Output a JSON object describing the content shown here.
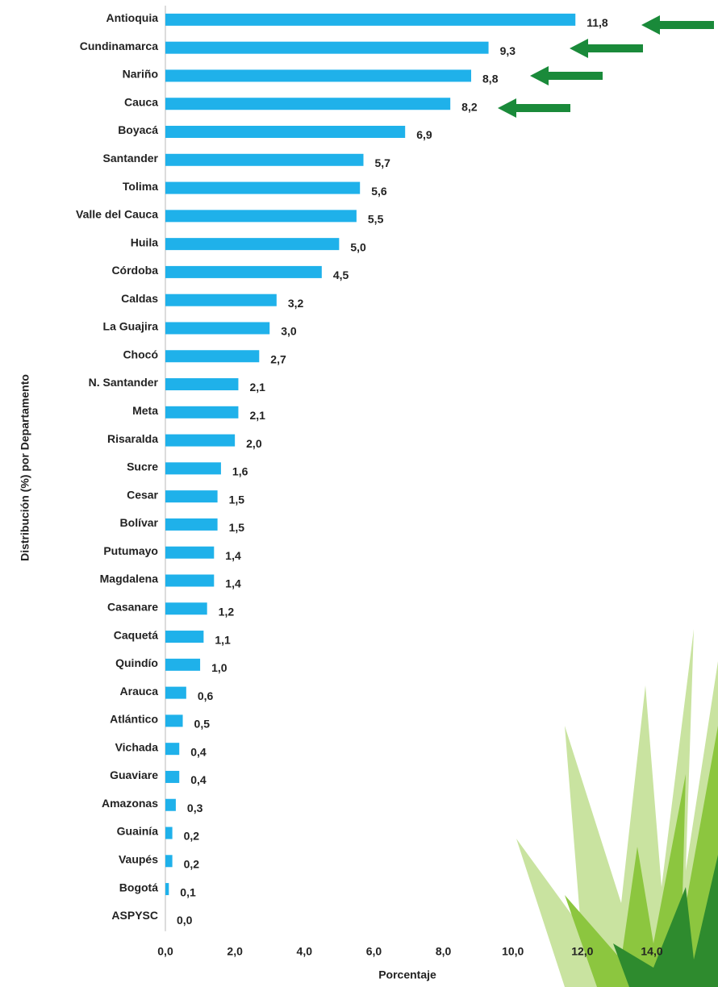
{
  "chart_data": {
    "type": "bar",
    "orientation": "horizontal",
    "color": "#1fb1ea",
    "categories": [
      "Antioquia",
      "Cundinamarca",
      "Nariño",
      "Cauca",
      "Boyacá",
      "Santander",
      "Tolima",
      "Valle del Cauca",
      "Huila",
      "Córdoba",
      "Caldas",
      "La Guajira",
      "Chocó",
      "N. Santander",
      "Meta",
      "Risaralda",
      "Sucre",
      "Cesar",
      "Bolívar",
      "Putumayo",
      "Magdalena",
      "Casanare",
      "Caquetá",
      "Quindío",
      "Arauca",
      "Atlántico",
      "Vichada",
      "Guaviare",
      "Amazonas",
      "Guainía",
      "Vaupés",
      "Bogotá",
      "ASPYSC"
    ],
    "values": [
      11.8,
      9.3,
      8.8,
      8.2,
      6.9,
      5.7,
      5.6,
      5.5,
      5.0,
      4.5,
      3.2,
      3.0,
      2.7,
      2.1,
      2.1,
      2.0,
      1.6,
      1.5,
      1.5,
      1.4,
      1.4,
      1.2,
      1.1,
      1.0,
      0.6,
      0.5,
      0.4,
      0.4,
      0.3,
      0.2,
      0.2,
      0.1,
      0.0
    ],
    "value_labels": [
      "11,8",
      "9,3",
      "8,8",
      "8,2",
      "6,9",
      "5,7",
      "5,6",
      "5,5",
      "5,0",
      "4,5",
      "3,2",
      "3,0",
      "2,7",
      "2,1",
      "2,1",
      "2,0",
      "1,6",
      "1,5",
      "1,5",
      "1,4",
      "1,4",
      "1,2",
      "1,1",
      "1,0",
      "0,6",
      "0,5",
      "0,4",
      "0,4",
      "0,3",
      "0,2",
      "0,2",
      "0,1",
      "0,0"
    ],
    "xlim": [
      0,
      14
    ],
    "xticks": [
      {
        "value": 0,
        "label": "0,0"
      },
      {
        "value": 2,
        "label": "2,0"
      },
      {
        "value": 4,
        "label": "4,0"
      },
      {
        "value": 6,
        "label": "6,0"
      },
      {
        "value": 8,
        "label": "8,0"
      },
      {
        "value": 10,
        "label": "10,0"
      },
      {
        "value": 12,
        "label": "12,0"
      },
      {
        "value": 14,
        "label": "14,0"
      }
    ],
    "x_label": "Porcentaje",
    "y_label": "Distribución (%) por Departamento",
    "grid": false
  }
}
